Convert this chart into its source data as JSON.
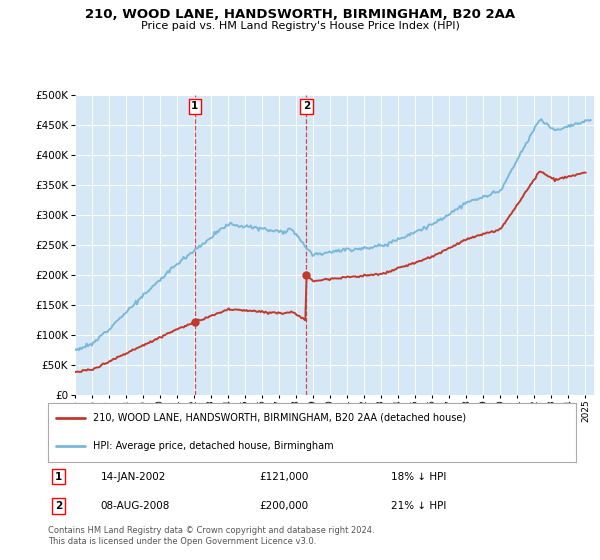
{
  "title": "210, WOOD LANE, HANDSWORTH, BIRMINGHAM, B20 2AA",
  "subtitle": "Price paid vs. HM Land Registry's House Price Index (HPI)",
  "ylim": [
    0,
    500000
  ],
  "xlim_start": 1995.0,
  "xlim_end": 2025.5,
  "hpi_color": "#7ab8d9",
  "price_color": "#c0392b",
  "plot_bg_color": "#d6e8f5",
  "marker1_x": 2002.04,
  "marker1_y": 121000,
  "marker1_label": "1",
  "marker1_date": "14-JAN-2002",
  "marker1_price": "£121,000",
  "marker1_hpi": "18% ↓ HPI",
  "marker2_x": 2008.6,
  "marker2_y": 200000,
  "marker2_label": "2",
  "marker2_date": "08-AUG-2008",
  "marker2_price": "£200,000",
  "marker2_hpi": "21% ↓ HPI",
  "legend_line1": "210, WOOD LANE, HANDSWORTH, BIRMINGHAM, B20 2AA (detached house)",
  "legend_line2": "HPI: Average price, detached house, Birmingham",
  "footnote": "Contains HM Land Registry data © Crown copyright and database right 2024.\nThis data is licensed under the Open Government Licence v3.0.",
  "xticks": [
    1995,
    1996,
    1997,
    1998,
    1999,
    2000,
    2001,
    2002,
    2003,
    2004,
    2005,
    2006,
    2007,
    2008,
    2009,
    2010,
    2011,
    2012,
    2013,
    2014,
    2015,
    2016,
    2017,
    2018,
    2019,
    2020,
    2021,
    2022,
    2023,
    2024,
    2025
  ]
}
